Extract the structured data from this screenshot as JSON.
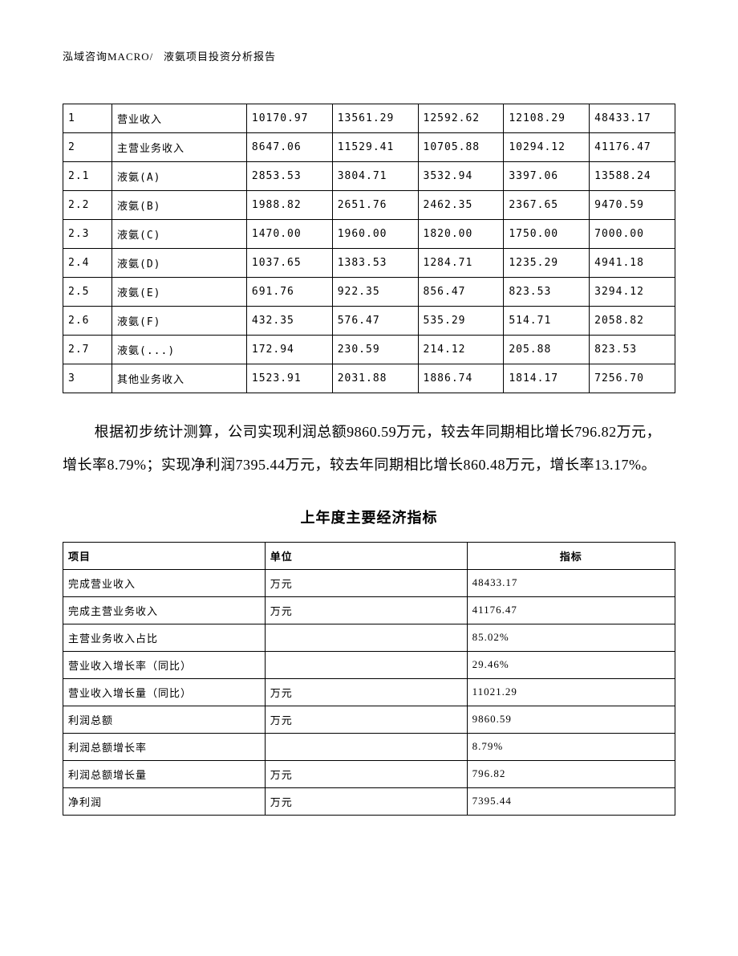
{
  "header": {
    "company": "泓域咨询MACRO/",
    "title": "液氨项目投资分析报告"
  },
  "table1": {
    "type": "table",
    "columns_count": 7,
    "col_widths_pct": [
      8,
      22,
      14,
      14,
      14,
      14,
      14
    ],
    "border_color": "#000000",
    "font_size_pt": 10,
    "rows": [
      {
        "idx": "1",
        "name": "营业收入",
        "v1": "10170.97",
        "v2": "13561.29",
        "v3": "12592.62",
        "v4": "12108.29",
        "v5": "48433.17"
      },
      {
        "idx": "2",
        "name": "主营业务收入",
        "v1": "8647.06",
        "v2": "11529.41",
        "v3": "10705.88",
        "v4": "10294.12",
        "v5": "41176.47"
      },
      {
        "idx": "2.1",
        "name": "液氨(A)",
        "v1": "2853.53",
        "v2": "3804.71",
        "v3": "3532.94",
        "v4": "3397.06",
        "v5": "13588.24"
      },
      {
        "idx": "2.2",
        "name": "液氨(B)",
        "v1": "1988.82",
        "v2": "2651.76",
        "v3": "2462.35",
        "v4": "2367.65",
        "v5": "9470.59"
      },
      {
        "idx": "2.3",
        "name": "液氨(C)",
        "v1": "1470.00",
        "v2": "1960.00",
        "v3": "1820.00",
        "v4": "1750.00",
        "v5": "7000.00"
      },
      {
        "idx": "2.4",
        "name": "液氨(D)",
        "v1": "1037.65",
        "v2": "1383.53",
        "v3": "1284.71",
        "v4": "1235.29",
        "v5": "4941.18"
      },
      {
        "idx": "2.5",
        "name": "液氨(E)",
        "v1": "691.76",
        "v2": "922.35",
        "v3": "856.47",
        "v4": "823.53",
        "v5": "3294.12"
      },
      {
        "idx": "2.6",
        "name": "液氨(F)",
        "v1": "432.35",
        "v2": "576.47",
        "v3": "535.29",
        "v4": "514.71",
        "v5": "2058.82"
      },
      {
        "idx": "2.7",
        "name": "液氨(...)",
        "v1": "172.94",
        "v2": "230.59",
        "v3": "214.12",
        "v4": "205.88",
        "v5": "823.53"
      },
      {
        "idx": "3",
        "name": "其他业务收入",
        "v1": "1523.91",
        "v2": "2031.88",
        "v3": "1886.74",
        "v4": "1814.17",
        "v5": "7256.70"
      }
    ]
  },
  "paragraph": {
    "text": "根据初步统计测算，公司实现利润总额9860.59万元，较去年同期相比增长796.82万元，增长率8.79%；实现净利润7395.44万元，较去年同期相比增长860.48万元，增长率13.17%。",
    "font_size_pt": 14,
    "line_height": 2.3,
    "indent_em": 2
  },
  "section_title": "上年度主要经济指标",
  "table2": {
    "type": "table",
    "border_color": "#000000",
    "font_size_pt": 10,
    "header": {
      "c1": "项目",
      "c2": "单位",
      "c3": "指标"
    },
    "col_widths_pct": [
      33,
      33,
      34
    ],
    "header_alignment": [
      "left",
      "left",
      "center"
    ],
    "cell_alignment": [
      "left",
      "left",
      "left"
    ],
    "rows": [
      {
        "c1": "完成营业收入",
        "c2": "万元",
        "c3": "48433.17"
      },
      {
        "c1": "完成主营业务收入",
        "c2": "万元",
        "c3": "41176.47"
      },
      {
        "c1": "主营业务收入占比",
        "c2": "",
        "c3": "85.02%"
      },
      {
        "c1": "营业收入增长率（同比）",
        "c2": "",
        "c3": "29.46%"
      },
      {
        "c1": "营业收入增长量（同比）",
        "c2": "万元",
        "c3": "11021.29"
      },
      {
        "c1": "利润总额",
        "c2": "万元",
        "c3": "9860.59"
      },
      {
        "c1": "利润总额增长率",
        "c2": "",
        "c3": "8.79%"
      },
      {
        "c1": "利润总额增长量",
        "c2": "万元",
        "c3": "796.82"
      },
      {
        "c1": "净利润",
        "c2": "万元",
        "c3": "7395.44"
      }
    ]
  },
  "background_color": "#ffffff",
  "text_color": "#000000"
}
